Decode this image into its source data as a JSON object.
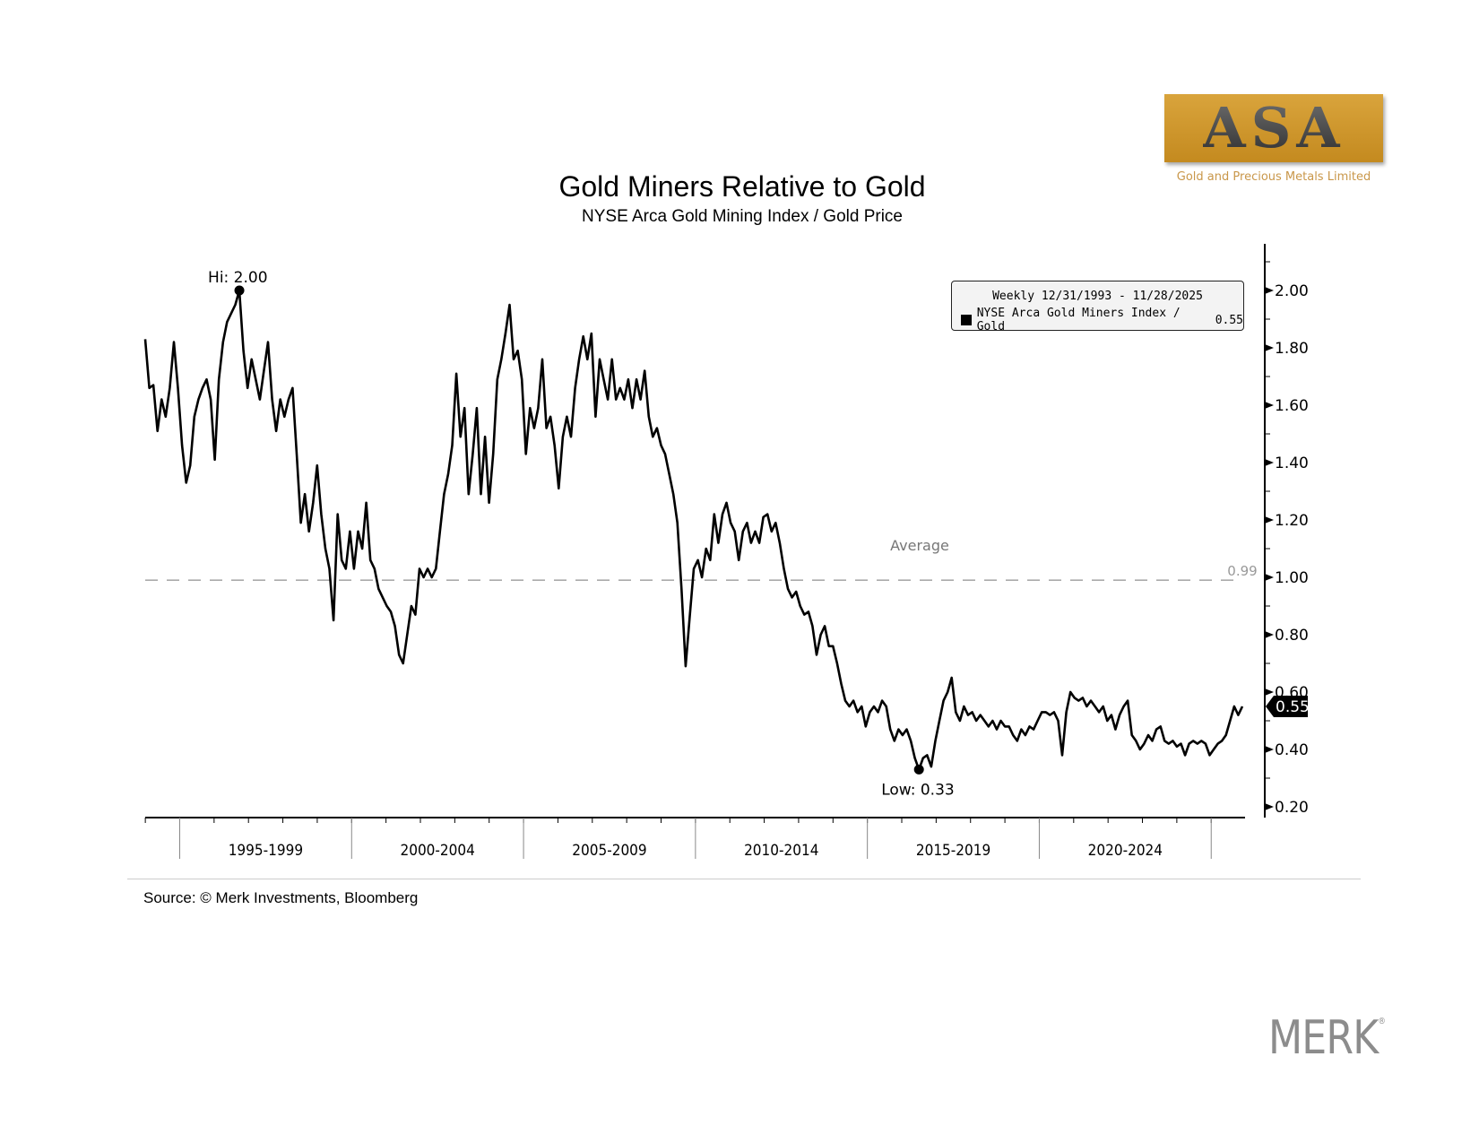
{
  "header": {
    "title": "Gold Miners Relative to Gold",
    "subtitle": "NYSE Arca Gold Mining Index / Gold Price"
  },
  "logo": {
    "text": "ASA",
    "tagline": "Gold and Precious Metals Limited",
    "color": "#cf961f"
  },
  "footer": {
    "source": "Source: © Merk Investments, Bloomberg",
    "brand": "MERK",
    "brand_mark": "®"
  },
  "legend": {
    "range": "Weekly 12/31/1993 - 11/28/2025",
    "series_label": "NYSE Arca Gold Miners Index / Gold",
    "last_value": "0.55"
  },
  "chart_data": {
    "type": "line",
    "title": "Gold Miners Relative to Gold",
    "subtitle": "NYSE Arca Gold Mining Index / Gold Price",
    "x_start": "1993-12-31",
    "x_end": "2025-11-28",
    "frequency": "Weekly",
    "x_tick_labels": [
      "1995-1999",
      "2000-2004",
      "2005-2009",
      "2010-2014",
      "2015-2019",
      "2020-2024"
    ],
    "y_ticks": [
      "0.20",
      "0.40",
      "0.60",
      "0.80",
      "1.00",
      "1.20",
      "1.40",
      "1.60",
      "1.80",
      "2.00"
    ],
    "ylim": [
      0.2,
      2.0
    ],
    "y_axis_side": "right",
    "grid": false,
    "legend_position": "top-right",
    "series": [
      {
        "name": "NYSE Arca Gold Miners Index / Gold",
        "color": "#000000",
        "values": [
          1.83,
          1.66,
          1.67,
          1.51,
          1.62,
          1.56,
          1.66,
          1.82,
          1.66,
          1.46,
          1.33,
          1.39,
          1.56,
          1.62,
          1.66,
          1.69,
          1.62,
          1.41,
          1.69,
          1.82,
          1.89,
          1.92,
          1.95,
          2.0,
          1.79,
          1.66,
          1.76,
          1.69,
          1.62,
          1.72,
          1.82,
          1.62,
          1.51,
          1.62,
          1.56,
          1.62,
          1.66,
          1.43,
          1.19,
          1.29,
          1.16,
          1.26,
          1.39,
          1.22,
          1.1,
          1.03,
          0.85,
          1.22,
          1.06,
          1.03,
          1.16,
          1.03,
          1.16,
          1.1,
          1.26,
          1.06,
          1.03,
          0.96,
          0.93,
          0.9,
          0.88,
          0.83,
          0.73,
          0.7,
          0.8,
          0.9,
          0.87,
          1.03,
          1.0,
          1.03,
          1.0,
          1.03,
          1.16,
          1.29,
          1.36,
          1.46,
          1.71,
          1.49,
          1.59,
          1.29,
          1.43,
          1.59,
          1.29,
          1.49,
          1.26,
          1.43,
          1.69,
          1.76,
          1.85,
          1.95,
          1.76,
          1.79,
          1.69,
          1.43,
          1.59,
          1.52,
          1.59,
          1.76,
          1.52,
          1.56,
          1.46,
          1.31,
          1.49,
          1.56,
          1.49,
          1.66,
          1.76,
          1.84,
          1.76,
          1.85,
          1.56,
          1.76,
          1.69,
          1.62,
          1.76,
          1.62,
          1.66,
          1.62,
          1.69,
          1.59,
          1.69,
          1.62,
          1.72,
          1.56,
          1.49,
          1.52,
          1.46,
          1.43,
          1.36,
          1.29,
          1.19,
          0.96,
          0.69,
          0.86,
          1.03,
          1.06,
          1.0,
          1.1,
          1.06,
          1.22,
          1.12,
          1.22,
          1.26,
          1.19,
          1.16,
          1.06,
          1.16,
          1.19,
          1.12,
          1.16,
          1.12,
          1.21,
          1.22,
          1.16,
          1.19,
          1.12,
          1.03,
          0.96,
          0.93,
          0.95,
          0.9,
          0.87,
          0.88,
          0.83,
          0.73,
          0.8,
          0.83,
          0.76,
          0.76,
          0.7,
          0.63,
          0.57,
          0.55,
          0.57,
          0.53,
          0.55,
          0.48,
          0.53,
          0.55,
          0.53,
          0.57,
          0.55,
          0.47,
          0.43,
          0.47,
          0.45,
          0.47,
          0.43,
          0.37,
          0.33,
          0.37,
          0.38,
          0.34,
          0.43,
          0.5,
          0.57,
          0.6,
          0.65,
          0.53,
          0.5,
          0.55,
          0.52,
          0.53,
          0.5,
          0.52,
          0.5,
          0.48,
          0.5,
          0.47,
          0.5,
          0.48,
          0.48,
          0.45,
          0.43,
          0.47,
          0.45,
          0.48,
          0.47,
          0.5,
          0.53,
          0.53,
          0.52,
          0.53,
          0.5,
          0.38,
          0.53,
          0.6,
          0.58,
          0.57,
          0.58,
          0.55,
          0.57,
          0.55,
          0.53,
          0.55,
          0.5,
          0.52,
          0.47,
          0.52,
          0.55,
          0.57,
          0.45,
          0.43,
          0.4,
          0.42,
          0.45,
          0.43,
          0.47,
          0.48,
          0.43,
          0.42,
          0.43,
          0.41,
          0.42,
          0.38,
          0.42,
          0.43,
          0.42,
          0.43,
          0.42,
          0.38,
          0.4,
          0.42,
          0.43,
          0.45,
          0.5,
          0.55,
          0.52,
          0.55
        ]
      }
    ],
    "average": {
      "label": "Average",
      "value": 0.99,
      "value_label": "0.99"
    },
    "annotations": [
      {
        "label": "Hi: 2.00",
        "value": 2.0
      },
      {
        "label": "Low: 0.33",
        "value": 0.33
      }
    ],
    "last_value_tag": "0.55"
  }
}
